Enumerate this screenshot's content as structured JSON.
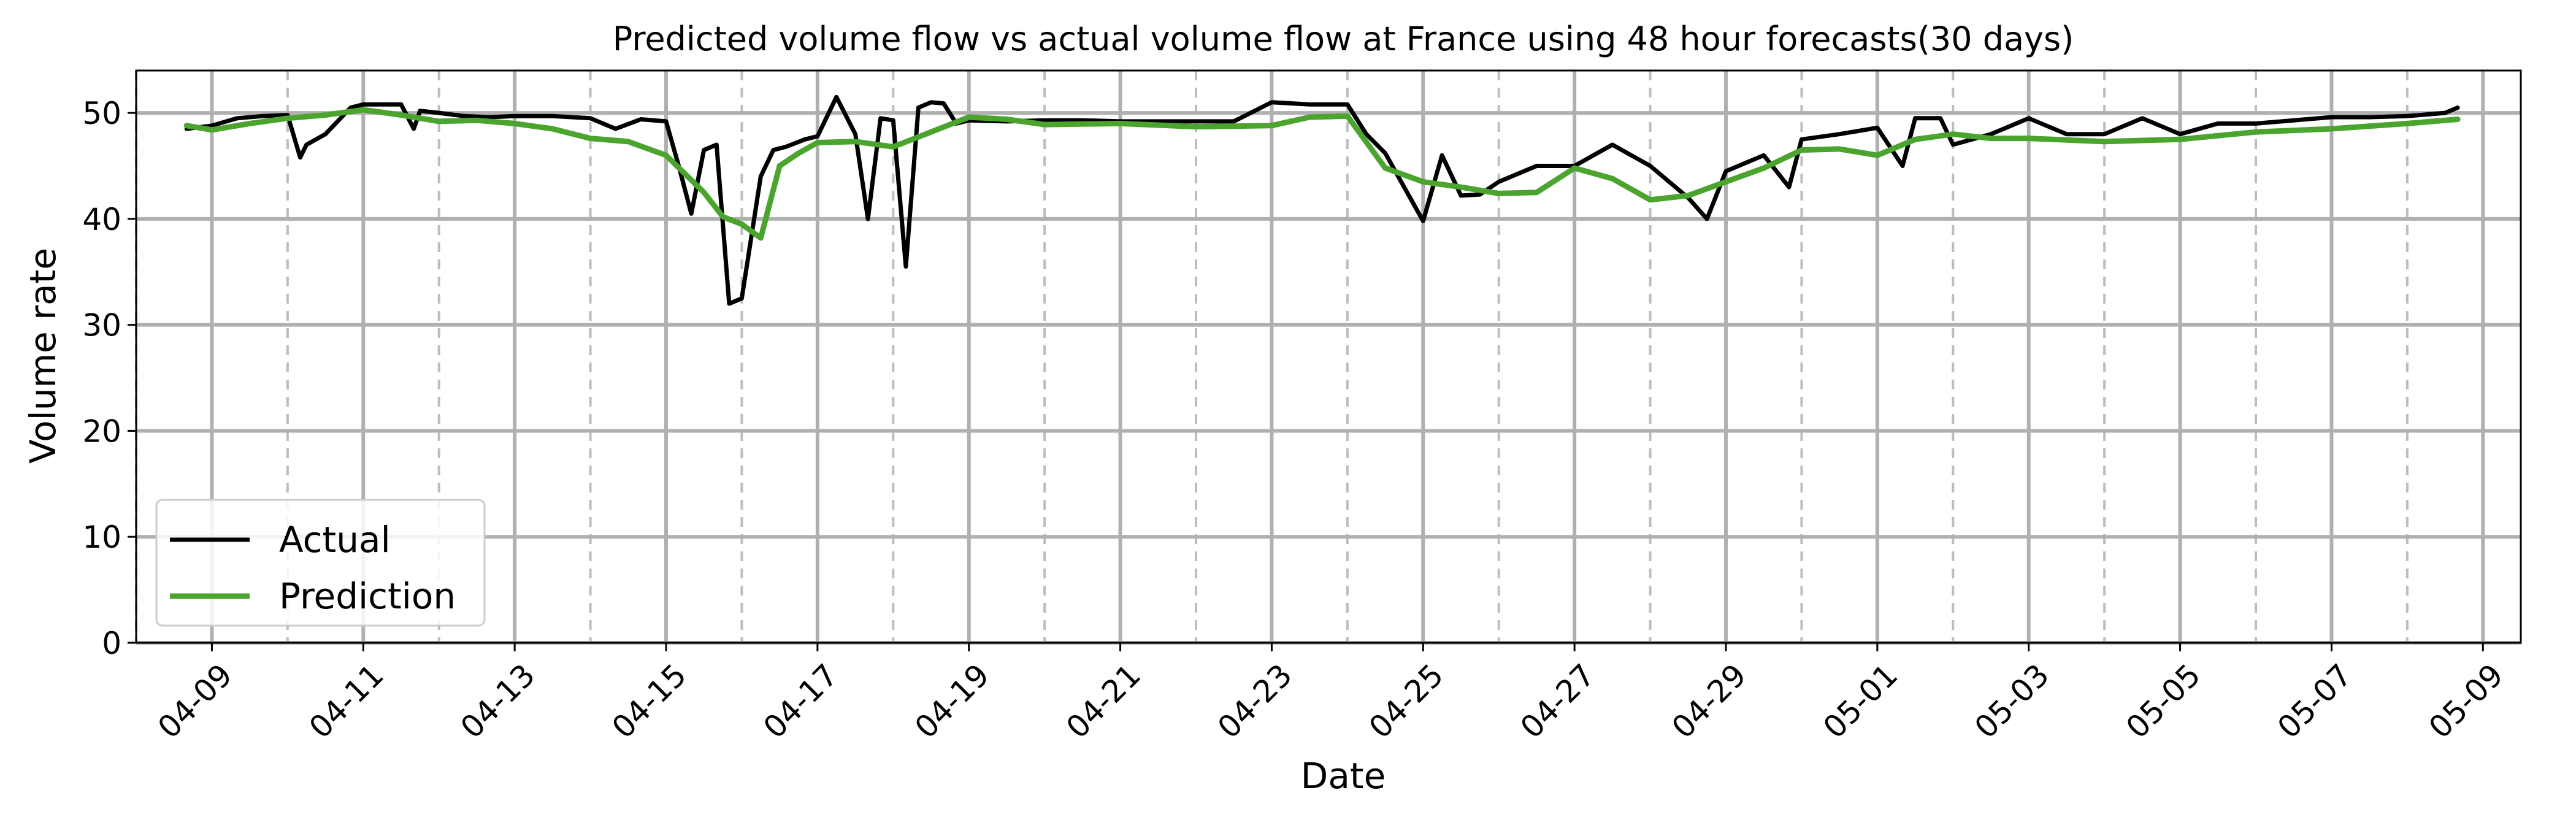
{
  "chart_data": {
    "type": "line",
    "title": "Predicted volume flow vs actual volume flow at France using 48 hour forecasts(30 days)",
    "xlabel": "Date",
    "ylabel": "Volume rate",
    "x_unit": "days",
    "x_range": [
      "04-08 00:00",
      "05-09 12:00"
    ],
    "xlim": [
      "04-08 00:00",
      "05-09 12:00"
    ],
    "ylim": [
      0,
      54
    ],
    "x_ticks": [
      "04-09",
      "04-11",
      "04-13",
      "04-15",
      "04-17",
      "04-19",
      "04-21",
      "04-23",
      "04-25",
      "04-27",
      "04-29",
      "05-01",
      "05-03",
      "05-05",
      "05-07",
      "05-09"
    ],
    "y_ticks": [
      0,
      10,
      20,
      30,
      40,
      50
    ],
    "grid": true,
    "legend": {
      "position": "lower left",
      "entries": [
        "Actual",
        "Prediction"
      ]
    },
    "series": [
      {
        "name": "Actual",
        "color": "#000000",
        "x": [
          "04-08 16:00",
          "04-09 00:00",
          "04-09 08:00",
          "04-09 16:00",
          "04-10 00:00",
          "04-10 04:00",
          "04-10 06:00",
          "04-10 12:00",
          "04-10 20:00",
          "04-11 00:00",
          "04-11 12:00",
          "04-11 16:00",
          "04-11 18:00",
          "04-12 00:00",
          "04-12 08:00",
          "04-12 16:00",
          "04-13 00:00",
          "04-13 12:00",
          "04-14 00:00",
          "04-14 08:00",
          "04-14 16:00",
          "04-15 00:00",
          "04-15 04:00",
          "04-15 08:00",
          "04-15 12:00",
          "04-15 16:00",
          "04-15 20:00",
          "04-16 00:00",
          "04-16 06:00",
          "04-16 10:00",
          "04-16 14:00",
          "04-16 20:00",
          "04-17 00:00",
          "04-17 06:00",
          "04-17 12:00",
          "04-17 16:00",
          "04-17 20:00",
          "04-18 00:00",
          "04-18 04:00",
          "04-18 08:00",
          "04-18 12:00",
          "04-18 16:00",
          "04-18 20:00",
          "04-19 00:00",
          "04-19 12:00",
          "04-20 00:00",
          "04-20 12:00",
          "04-21 00:00",
          "04-21 12:00",
          "04-22 00:00",
          "04-22 12:00",
          "04-23 00:00",
          "04-23 12:00",
          "04-24 00:00",
          "04-24 06:00",
          "04-24 12:00",
          "04-24 18:00",
          "04-25 00:00",
          "04-25 06:00",
          "04-25 12:00",
          "04-25 18:00",
          "04-26 00:00",
          "04-26 12:00",
          "04-27 00:00",
          "04-27 12:00",
          "04-28 00:00",
          "04-28 12:00",
          "04-28 18:00",
          "04-29 00:00",
          "04-29 12:00",
          "04-29 20:00",
          "04-30 00:00",
          "04-30 12:00",
          "05-01 00:00",
          "05-01 08:00",
          "05-01 12:00",
          "05-01 20:00",
          "05-02 00:00",
          "05-02 12:00",
          "05-03 00:00",
          "05-03 12:00",
          "05-04 00:00",
          "05-04 12:00",
          "05-05 00:00",
          "05-05 12:00",
          "05-06 00:00",
          "05-06 12:00",
          "05-07 00:00",
          "05-07 12:00",
          "05-08 00:00",
          "05-08 12:00",
          "05-08 16:00"
        ],
        "values": [
          48.5,
          48.8,
          49.5,
          49.7,
          49.8,
          45.8,
          47.0,
          48.0,
          50.5,
          50.8,
          50.8,
          48.5,
          50.2,
          50.0,
          49.7,
          49.6,
          49.7,
          49.7,
          49.5,
          48.5,
          49.4,
          49.2,
          45.0,
          40.5,
          46.5,
          47.0,
          32.0,
          32.5,
          44.0,
          46.5,
          46.8,
          47.5,
          47.8,
          51.5,
          48.0,
          40.0,
          49.5,
          49.3,
          35.5,
          50.5,
          51.0,
          50.9,
          49.0,
          49.3,
          49.2,
          49.3,
          49.3,
          49.2,
          49.2,
          49.2,
          49.2,
          51.0,
          50.8,
          50.8,
          48.0,
          46.2,
          43.0,
          39.8,
          46.0,
          42.2,
          42.3,
          43.5,
          45.0,
          45.0,
          47.0,
          45.0,
          42.0,
          40.0,
          44.5,
          46.0,
          43.0,
          47.5,
          48.0,
          48.6,
          45.0,
          49.5,
          49.5,
          47.0,
          48.0,
          49.5,
          48.0,
          48.0,
          49.5,
          48.0,
          49.0,
          49.0,
          49.3,
          49.6,
          49.6,
          49.7,
          50.0,
          50.5
        ]
      },
      {
        "name": "Prediction",
        "color": "#4aa42e",
        "x": [
          "04-08 16:00",
          "04-09 00:00",
          "04-09 12:00",
          "04-10 00:00",
          "04-10 12:00",
          "04-11 00:00",
          "04-11 12:00",
          "04-12 00:00",
          "04-12 12:00",
          "04-13 00:00",
          "04-13 12:00",
          "04-14 00:00",
          "04-14 12:00",
          "04-15 00:00",
          "04-15 12:00",
          "04-15 18:00",
          "04-16 00:00",
          "04-16 06:00",
          "04-16 12:00",
          "04-16 18:00",
          "04-17 00:00",
          "04-17 12:00",
          "04-18 00:00",
          "04-18 12:00",
          "04-19 00:00",
          "04-19 12:00",
          "04-20 00:00",
          "04-21 00:00",
          "04-22 00:00",
          "04-23 00:00",
          "04-23 12:00",
          "04-24 00:00",
          "04-24 12:00",
          "04-25 00:00",
          "04-25 12:00",
          "04-26 00:00",
          "04-26 12:00",
          "04-27 00:00",
          "04-27 12:00",
          "04-28 00:00",
          "04-28 12:00",
          "04-29 00:00",
          "04-29 12:00",
          "04-30 00:00",
          "04-30 12:00",
          "05-01 00:00",
          "05-01 12:00",
          "05-02 00:00",
          "05-02 12:00",
          "05-03 00:00",
          "05-04 00:00",
          "05-05 00:00",
          "05-06 00:00",
          "05-07 00:00",
          "05-08 00:00",
          "05-08 16:00"
        ],
        "values": [
          48.8,
          48.4,
          49.0,
          49.5,
          49.8,
          50.3,
          49.8,
          49.2,
          49.3,
          49.0,
          48.5,
          47.6,
          47.3,
          46.0,
          42.5,
          40.2,
          39.5,
          38.2,
          45.0,
          46.2,
          47.2,
          47.3,
          46.8,
          48.2,
          49.6,
          49.4,
          48.9,
          49.0,
          48.7,
          48.8,
          49.6,
          49.7,
          44.8,
          43.5,
          43.0,
          42.4,
          42.5,
          44.8,
          43.8,
          41.8,
          42.2,
          43.5,
          44.8,
          46.5,
          46.6,
          46.0,
          47.5,
          48.0,
          47.6,
          47.6,
          47.3,
          47.5,
          48.2,
          48.5,
          49.0,
          49.4
        ]
      }
    ]
  }
}
